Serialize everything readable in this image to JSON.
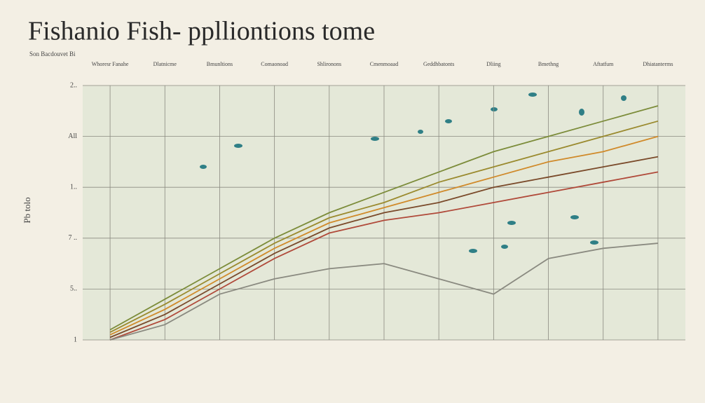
{
  "chart_data": {
    "type": "line",
    "title": "Fishanio Fish- pplliontions tome",
    "subtitle": "Son Bacdouvet Bi",
    "y_label": "Pb tolo",
    "categories": [
      "Whoresr Fanahe",
      "Dlatnicme",
      "Bmunltions",
      "Comaonoad",
      "Shlironons",
      "Cmenmoaad",
      "Geddhbatonts",
      "Dliing",
      "Bmethng",
      "Aftatfum",
      "Dhiatanterms"
    ],
    "ylim": [
      0,
      5
    ],
    "yticks": [
      {
        "value": 0,
        "label": "1"
      },
      {
        "value": 1,
        "label": "5.."
      },
      {
        "value": 2,
        "label": "7 .."
      },
      {
        "value": 3,
        "label": "1.."
      },
      {
        "value": 4,
        "label": "All"
      },
      {
        "value": 5,
        "label": "2.."
      }
    ],
    "grid": true,
    "series": [
      {
        "color": "#7c8c3a",
        "values": [
          0.2,
          0.8,
          1.4,
          2.0,
          2.5,
          2.9,
          3.3,
          3.7,
          4.0,
          4.3,
          4.6
        ]
      },
      {
        "color": "#9a8a2e",
        "values": [
          0.15,
          0.7,
          1.3,
          1.9,
          2.4,
          2.7,
          3.1,
          3.4,
          3.7,
          4.0,
          4.3
        ]
      },
      {
        "color": "#d08a2a",
        "values": [
          0.1,
          0.6,
          1.2,
          1.8,
          2.3,
          2.6,
          2.9,
          3.2,
          3.5,
          3.7,
          4.0
        ]
      },
      {
        "color": "#7a4a2a",
        "values": [
          0.05,
          0.5,
          1.1,
          1.7,
          2.2,
          2.5,
          2.7,
          3.0,
          3.2,
          3.4,
          3.6
        ]
      },
      {
        "color": "#b04a3a",
        "values": [
          0,
          0.4,
          1.0,
          1.6,
          2.1,
          2.35,
          2.5,
          2.7,
          2.9,
          3.1,
          3.3
        ]
      },
      {
        "color": "#8a8a80",
        "values": [
          0,
          0.3,
          0.9,
          1.2,
          1.4,
          1.5,
          1.2,
          0.9,
          1.6,
          1.8,
          1.9
        ]
      }
    ]
  }
}
